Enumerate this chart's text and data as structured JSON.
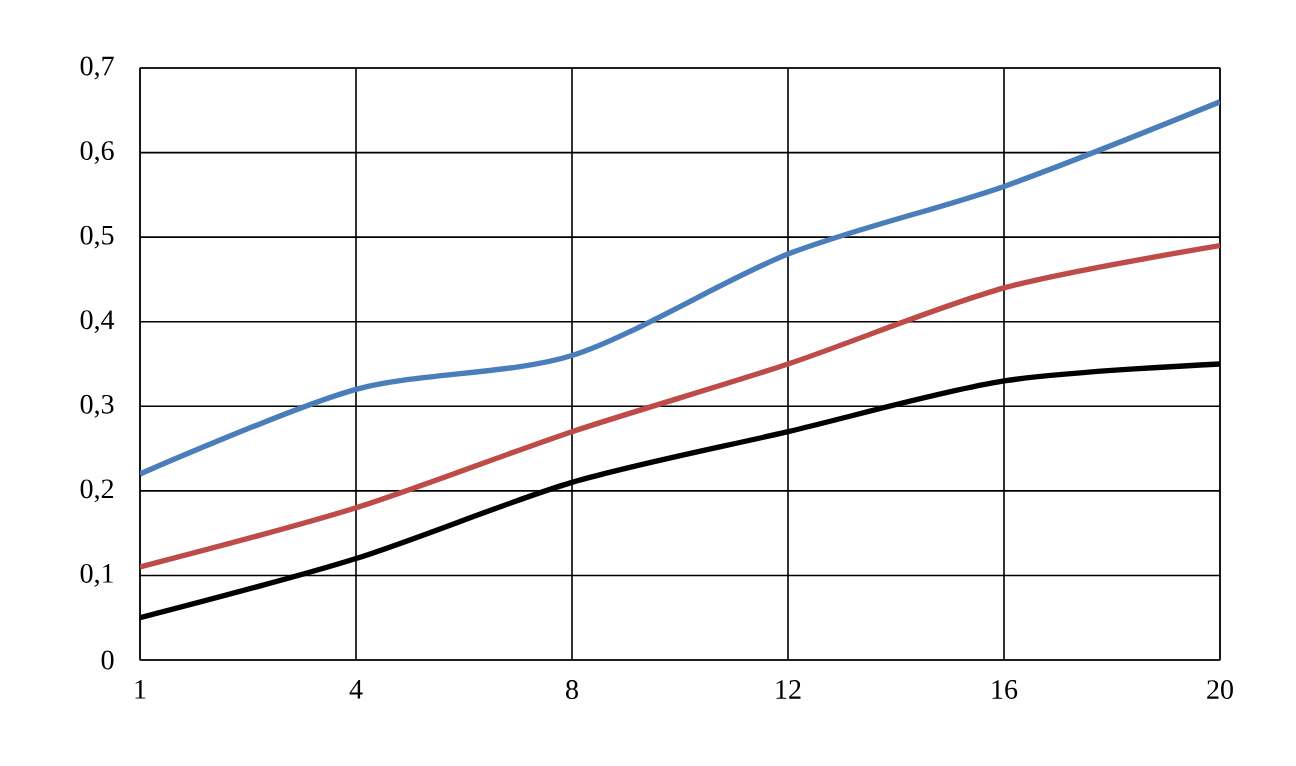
{
  "chart_data": {
    "type": "line",
    "categories": [
      "1",
      "4",
      "8",
      "12",
      "16",
      "20"
    ],
    "series": [
      {
        "color": "#4a7ebb",
        "values": [
          0.22,
          0.32,
          0.36,
          0.48,
          0.56,
          0.66
        ]
      },
      {
        "color": "#be4b48",
        "values": [
          0.11,
          0.18,
          0.27,
          0.35,
          0.44,
          0.49
        ]
      },
      {
        "color": "#000000",
        "values": [
          0.05,
          0.12,
          0.21,
          0.27,
          0.33,
          0.35
        ]
      }
    ],
    "ylim": [
      0,
      0.7
    ],
    "yticks": [
      {
        "value": 0,
        "label": "0"
      },
      {
        "value": 0.1,
        "label": "0,1"
      },
      {
        "value": 0.2,
        "label": "0,2"
      },
      {
        "value": 0.3,
        "label": "0,3"
      },
      {
        "value": 0.4,
        "label": "0,4"
      },
      {
        "value": 0.5,
        "label": "0,5"
      },
      {
        "value": 0.6,
        "label": "0,6"
      },
      {
        "value": 0.7,
        "label": "0,7"
      }
    ],
    "grid": true,
    "marker": "none",
    "line_style": "solid"
  }
}
